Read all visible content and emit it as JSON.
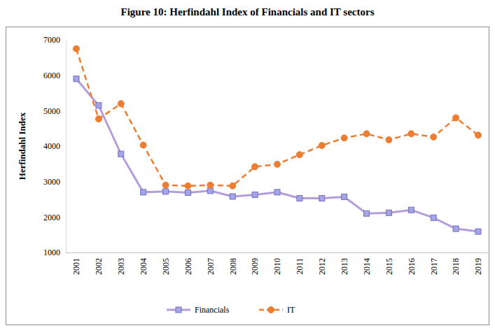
{
  "chart_data": {
    "type": "line",
    "title": "Figure 10: Herfindahl Index of Financials and IT sectors",
    "y_label": "Herfindahl Index",
    "categories": [
      "2001",
      "2002",
      "2003",
      "2004",
      "2005",
      "2006",
      "2007",
      "2008",
      "2009",
      "2010",
      "2011",
      "2012",
      "2013",
      "2014",
      "2015",
      "2016",
      "2017",
      "2018",
      "2019"
    ],
    "series": [
      {
        "name": "Financials",
        "color": "#b39ddb",
        "marker": "square",
        "line_style": "solid",
        "values": [
          5900,
          5150,
          3780,
          2700,
          2720,
          2690,
          2740,
          2580,
          2630,
          2700,
          2530,
          2530,
          2570,
          2100,
          2120,
          2200,
          1980,
          1670,
          1590
        ]
      },
      {
        "name": "IT",
        "color": "#ed7d31",
        "marker": "circle",
        "line_style": "dashed",
        "values": [
          6750,
          4770,
          5200,
          4030,
          2900,
          2880,
          2900,
          2880,
          3420,
          3490,
          3760,
          4020,
          4230,
          4350,
          4180,
          4350,
          4260,
          4800,
          4310
        ]
      }
    ],
    "ylim": [
      1000,
      7000
    ],
    "yticks": [
      1000,
      2000,
      3000,
      4000,
      5000,
      6000,
      7000
    ],
    "grid": false,
    "legend": "bottom"
  }
}
